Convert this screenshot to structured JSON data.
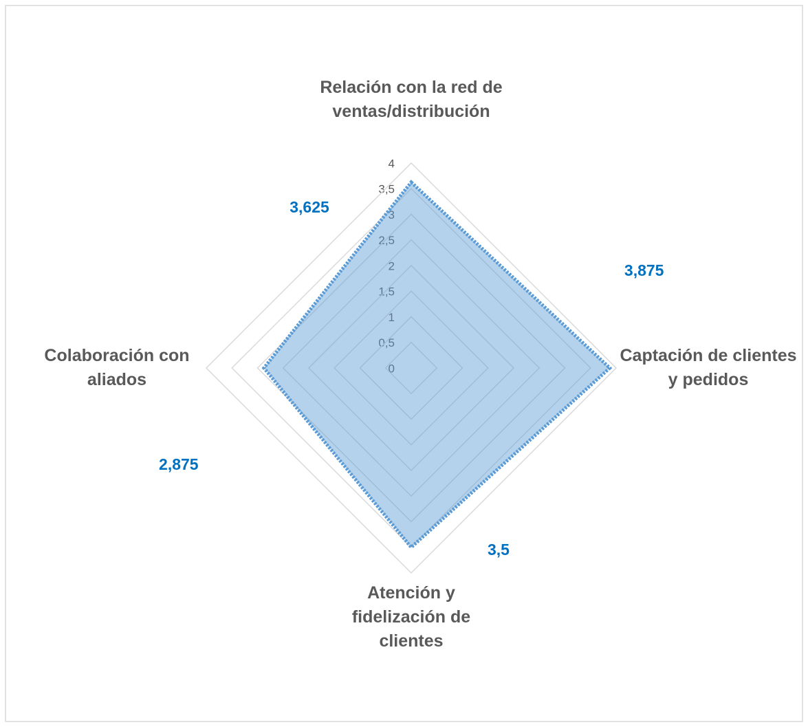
{
  "chart_data": {
    "type": "radar",
    "categories": [
      "Relación con la red de ventas/distribución",
      "Captación de clientes y pedidos",
      "Atención y fidelización de clientes",
      "Colaboración con aliados"
    ],
    "values": [
      3.625,
      3.875,
      3.5,
      2.875
    ],
    "value_labels": [
      "3,625",
      "3,875",
      "3,5",
      "2,875"
    ],
    "color": "#5b9bd5",
    "ylim": [
      0,
      4
    ],
    "yticks": [
      0,
      {
        "value": 0.5,
        "label": "0,5"
      },
      1,
      {
        "value": 1.5,
        "label": "1,5"
      },
      2,
      {
        "value": 2.5,
        "label": "2,5"
      },
      3,
      {
        "value": 3.5,
        "label": "3,5"
      },
      4
    ],
    "grid": true
  }
}
